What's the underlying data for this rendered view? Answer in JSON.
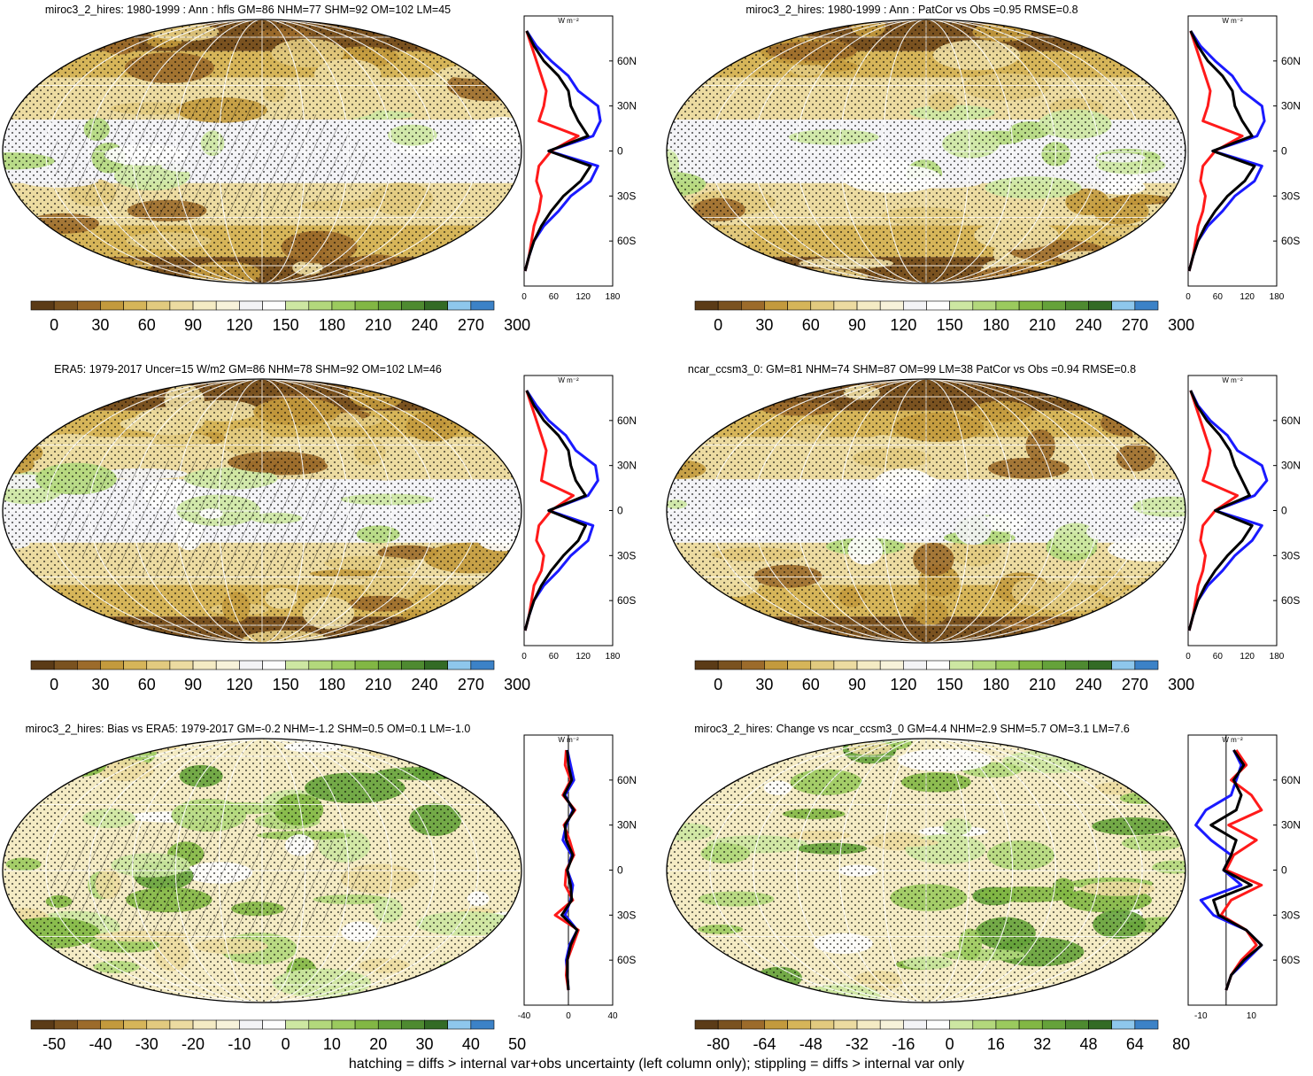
{
  "footer": "hatching = diffs > internal var+obs uncertainty (left column only); stippling = diffs > internal var only",
  "panel_colors": {
    "mean": [
      "#5b3b17",
      "#7a5220",
      "#9c6b2b",
      "#c39a3d",
      "#d6b559",
      "#e2ca7f",
      "#ecdba1",
      "#f4ebc4",
      "#f7f2da",
      "#f3f3f6",
      "#fdfdfd",
      "#cde7a2",
      "#b3d87c",
      "#9bca5e",
      "#82b744",
      "#65a23a",
      "#4e8a30",
      "#336b25",
      "#8ec7ec",
      "#3c82c7"
    ],
    "diff": [
      "#5b3b17",
      "#7a5220",
      "#9c6b2b",
      "#c39a3d",
      "#d6b559",
      "#e2ca7f",
      "#ecdba1",
      "#f4ebc4",
      "#f7f2da",
      "#f3f3f6",
      "#fdfdfd",
      "#cde7a2",
      "#b3d87c",
      "#9bca5e",
      "#82b744",
      "#65a23a",
      "#4e8a30",
      "#336b25",
      "#8ec7ec",
      "#3c82c7"
    ]
  },
  "line_colors": {
    "nhm": "#1a1aff",
    "shm": "#ff1a1a",
    "gm": "#000000"
  },
  "profile_unit": "W m⁻²",
  "lat_ticks": [
    "60N",
    "30N",
    "0",
    "30S",
    "60S"
  ],
  "chart_data": [
    {
      "type": "heatmap",
      "title": "miroc3_2_hires: 1980-1999 : Ann : hfls GM=86 NHM=77 SHM=92 OM=102 LM=45",
      "colorbar_labels": [
        "0",
        "30",
        "60",
        "90",
        "120",
        "150",
        "180",
        "210",
        "240",
        "270",
        "300"
      ],
      "map": "mean",
      "seed": 3,
      "profile": {
        "xticks": [
          "0",
          "60",
          "120",
          "180"
        ],
        "xlim": [
          0,
          180
        ],
        "lat": [
          80,
          70,
          60,
          50,
          40,
          30,
          20,
          10,
          0,
          -10,
          -20,
          -30,
          -40,
          -50,
          -60,
          -70,
          -80
        ],
        "series": [
          {
            "color": "blue",
            "values": [
              5,
              25,
              55,
              90,
              110,
              150,
              155,
              140,
              50,
              150,
              135,
              95,
              70,
              40,
              20,
              10,
              2
            ]
          },
          {
            "color": "red",
            "values": [
              5,
              15,
              25,
              35,
              45,
              40,
              30,
              110,
              55,
              30,
              25,
              35,
              30,
              20,
              15,
              10,
              2
            ]
          },
          {
            "color": "black",
            "values": [
              5,
              20,
              40,
              70,
              90,
              95,
              110,
              130,
              50,
              135,
              115,
              80,
              55,
              35,
              20,
              10,
              2
            ]
          }
        ]
      }
    },
    {
      "type": "heatmap",
      "title": "miroc3_2_hires: 1980-1999 : Ann : PatCor vs Obs =0.95 RMSE=0.8",
      "colorbar_labels": [
        "0",
        "30",
        "60",
        "90",
        "120",
        "150",
        "180",
        "210",
        "240",
        "270",
        "300"
      ],
      "map": "mean",
      "seed": 5,
      "profile": {
        "xticks": [
          "0",
          "60",
          "120",
          "180"
        ],
        "xlim": [
          0,
          180
        ],
        "lat": [
          80,
          70,
          60,
          50,
          40,
          30,
          20,
          10,
          0,
          -10,
          -20,
          -30,
          -40,
          -50,
          -60,
          -70,
          -80
        ],
        "series": [
          {
            "color": "blue",
            "values": [
              5,
              25,
              55,
              90,
              110,
              150,
              155,
              140,
              50,
              150,
              135,
              95,
              70,
              40,
              20,
              10,
              2
            ]
          },
          {
            "color": "red",
            "values": [
              5,
              15,
              25,
              35,
              45,
              40,
              30,
              110,
              55,
              30,
              25,
              35,
              30,
              20,
              15,
              10,
              2
            ]
          },
          {
            "color": "black",
            "values": [
              5,
              20,
              40,
              70,
              90,
              95,
              110,
              130,
              50,
              135,
              115,
              80,
              55,
              35,
              20,
              10,
              2
            ]
          }
        ]
      }
    },
    {
      "type": "heatmap",
      "title": "ERA5: 1979-2017 Uncer=15 W/m2 GM=86 NHM=78 SHM=92 OM=102 LM=46",
      "colorbar_labels": [
        "0",
        "30",
        "60",
        "90",
        "120",
        "150",
        "180",
        "210",
        "240",
        "270",
        "300"
      ],
      "map": "mean",
      "seed": 7,
      "profile": {
        "xticks": [
          "0",
          "60",
          "120",
          "180"
        ],
        "xlim": [
          0,
          180
        ],
        "lat": [
          80,
          70,
          60,
          50,
          40,
          30,
          20,
          10,
          0,
          -10,
          -20,
          -30,
          -40,
          -50,
          -60,
          -70,
          -80
        ],
        "series": [
          {
            "color": "blue",
            "values": [
              5,
              25,
              50,
              85,
              105,
              145,
              150,
              130,
              50,
              140,
              130,
              95,
              70,
              40,
              20,
              10,
              2
            ]
          },
          {
            "color": "red",
            "values": [
              5,
              15,
              25,
              35,
              45,
              40,
              35,
              100,
              55,
              30,
              25,
              40,
              35,
              20,
              15,
              10,
              2
            ]
          },
          {
            "color": "black",
            "values": [
              5,
              20,
              40,
              70,
              90,
              95,
              105,
              125,
              50,
              125,
              110,
              80,
              55,
              35,
              20,
              10,
              2
            ]
          }
        ]
      }
    },
    {
      "type": "heatmap",
      "title": "ncar_ccsm3_0: GM=81 NHM=74 SHM=87 OM=99 LM=38 PatCor vs Obs =0.94 RMSE=0.8",
      "colorbar_labels": [
        "0",
        "30",
        "60",
        "90",
        "120",
        "150",
        "180",
        "210",
        "240",
        "270",
        "300"
      ],
      "map": "mean",
      "seed": 11,
      "profile": {
        "xticks": [
          "0",
          "60",
          "120",
          "180"
        ],
        "xlim": [
          0,
          180
        ],
        "lat": [
          80,
          70,
          60,
          50,
          40,
          30,
          20,
          10,
          0,
          -10,
          -20,
          -30,
          -40,
          -50,
          -60,
          -70,
          -80
        ],
        "series": [
          {
            "color": "blue",
            "values": [
              5,
              20,
              45,
              80,
              100,
              150,
              160,
              135,
              55,
              150,
              130,
              95,
              70,
              40,
              20,
              10,
              2
            ]
          },
          {
            "color": "red",
            "values": [
              5,
              15,
              25,
              35,
              45,
              40,
              30,
              100,
              55,
              30,
              25,
              35,
              30,
              20,
              15,
              10,
              2
            ]
          },
          {
            "color": "black",
            "values": [
              5,
              18,
              38,
              65,
              85,
              95,
              110,
              125,
              55,
              130,
              110,
              80,
              55,
              35,
              20,
              10,
              2
            ]
          }
        ]
      }
    },
    {
      "type": "heatmap",
      "title": "miroc3_2_hires: Bias vs ERA5: 1979-2017 GM=-0.2 NHM=-1.2 SHM=0.5 OM=0.1 LM=-1.0",
      "colorbar_labels": [
        "-50",
        "-40",
        "-30",
        "-20",
        "-10",
        "0",
        "10",
        "20",
        "30",
        "40",
        "50"
      ],
      "map": "diff",
      "seed": 13,
      "profile": {
        "xticks": [
          "-40",
          "0",
          "40"
        ],
        "xlim": [
          -40,
          40
        ],
        "lat": [
          80,
          70,
          60,
          50,
          40,
          30,
          20,
          10,
          0,
          -10,
          -20,
          -30,
          -40,
          -50,
          -60,
          -70,
          -80
        ],
        "series": [
          {
            "color": "blue",
            "values": [
              -1,
              2,
              5,
              -3,
              4,
              -2,
              -5,
              3,
              -1,
              4,
              2,
              -3,
              8,
              1,
              -2,
              -1,
              0
            ]
          },
          {
            "color": "red",
            "values": [
              -2,
              -3,
              2,
              -5,
              6,
              -4,
              1,
              5,
              -2,
              -3,
              4,
              -12,
              9,
              4,
              -1,
              -2,
              0
            ]
          },
          {
            "color": "black",
            "values": [
              -1,
              0,
              3,
              -4,
              5,
              -3,
              -2,
              4,
              -1,
              2,
              3,
              -6,
              8,
              2,
              -1,
              -1,
              0
            ]
          }
        ]
      }
    },
    {
      "type": "heatmap",
      "title": "miroc3_2_hires: Change vs ncar_ccsm3_0 GM=4.4 NHM=2.9 SHM=5.7 OM=3.1 LM=7.6",
      "colorbar_labels": [
        "-80",
        "-64",
        "-48",
        "-32",
        "-16",
        "0",
        "16",
        "32",
        "48",
        "64",
        "80"
      ],
      "map": "diff",
      "seed": 17,
      "profile": {
        "xticks": [
          "-10",
          "10"
        ],
        "xlim": [
          -15,
          20
        ],
        "lat": [
          80,
          70,
          60,
          50,
          40,
          30,
          20,
          10,
          0,
          -10,
          -20,
          -30,
          -40,
          -50,
          -60,
          -70,
          -80
        ],
        "series": [
          {
            "color": "blue",
            "values": [
              3,
              6,
              4,
              2,
              -8,
              -12,
              -6,
              2,
              -1,
              6,
              -10,
              -5,
              8,
              14,
              8,
              2,
              0
            ]
          },
          {
            "color": "red",
            "values": [
              4,
              8,
              2,
              10,
              14,
              1,
              12,
              3,
              0,
              14,
              2,
              -2,
              8,
              12,
              6,
              2,
              0
            ]
          },
          {
            "color": "black",
            "values": [
              3,
              7,
              3,
              6,
              4,
              -6,
              4,
              2,
              -1,
              10,
              -5,
              -3,
              8,
              14,
              7,
              2,
              0
            ]
          }
        ]
      }
    }
  ]
}
